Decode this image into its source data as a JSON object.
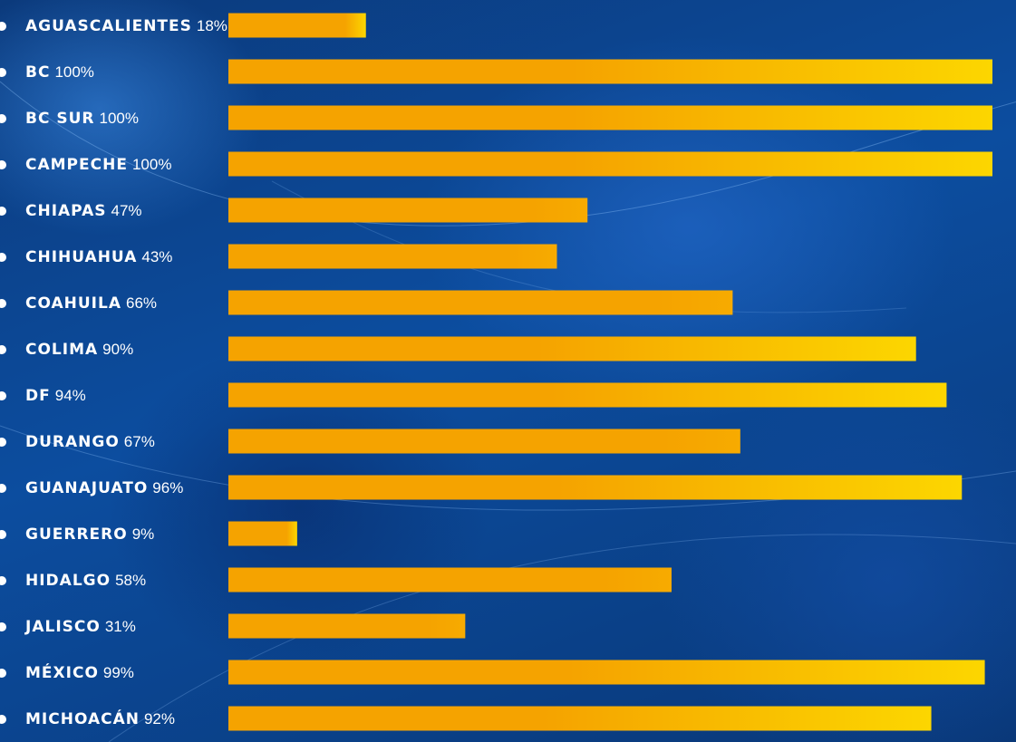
{
  "chart_data": {
    "type": "bar",
    "orientation": "horizontal",
    "title": "",
    "xlabel": "",
    "ylabel": "",
    "xlim": [
      0,
      100
    ],
    "categories": [
      "AGUASCALIENTES",
      "BC",
      "BC SUR",
      "CAMPECHE",
      "CHIAPAS",
      "CHIHUAHUA",
      "COAHUILA",
      "COLIMA",
      "DF",
      "DURANGO",
      "GUANAJUATO",
      "GUERRERO",
      "HIDALGO",
      "JALISCO",
      "MÉXICO",
      "MICHOACÁN"
    ],
    "values": [
      18,
      100,
      100,
      100,
      47,
      43,
      66,
      90,
      94,
      67,
      96,
      9,
      58,
      31,
      99,
      92
    ],
    "value_labels": [
      "18%",
      "100%",
      "100%",
      "100%",
      "47%",
      "43%",
      "66%",
      "90%",
      "94%",
      "67%",
      "96%",
      "9%",
      "58%",
      "31%",
      "99%",
      "92%"
    ],
    "grid": false,
    "legend": "none",
    "colors": {
      "bar_start": "#f5a300",
      "bar_end": "#fcd600",
      "background": "#0a3f86",
      "text": "#ffffff"
    }
  }
}
